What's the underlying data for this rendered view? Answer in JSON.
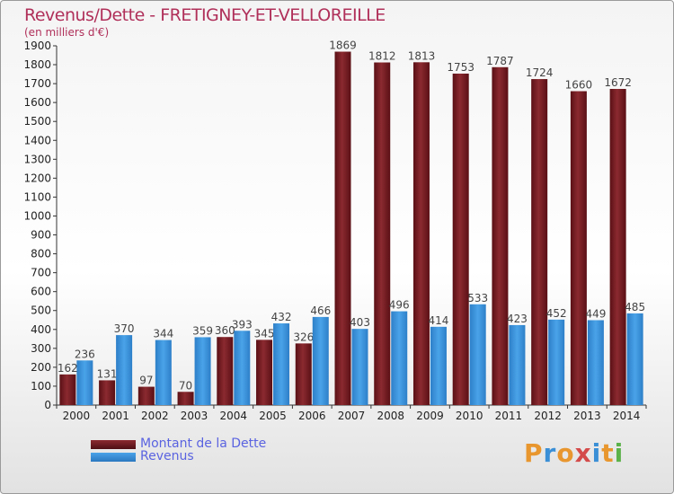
{
  "title": "Revenus/Dette - FRETIGNEY-ET-VELLOREILLE",
  "subtitle": "(en milliers d'€)",
  "logo": {
    "text": "Proxiti",
    "colors": [
      "#e8962e",
      "#3a8fd6",
      "#e8962e",
      "#d44a4a",
      "#3a8fd6",
      "#e8962e",
      "#5bb24a"
    ]
  },
  "legend": {
    "debt_label": "Montant de la Dette",
    "revenue_label": "Revenus"
  },
  "colors": {
    "debt": "#8b2a30",
    "revenue": "#4aa3e8"
  },
  "chart_data": {
    "type": "bar",
    "categories": [
      "2000",
      "2001",
      "2002",
      "2003",
      "2004",
      "2005",
      "2006",
      "2007",
      "2008",
      "2009",
      "2010",
      "2011",
      "2012",
      "2013",
      "2014"
    ],
    "series": [
      {
        "name": "Montant de la Dette",
        "values": [
          162,
          131,
          97,
          70,
          360,
          345,
          326,
          1869,
          1812,
          1813,
          1753,
          1787,
          1724,
          1660,
          1672
        ]
      },
      {
        "name": "Revenus",
        "values": [
          236,
          370,
          344,
          359,
          393,
          432,
          466,
          403,
          496,
          414,
          533,
          423,
          452,
          449,
          485
        ]
      }
    ],
    "yticks": [
      "0",
      "100",
      "200",
      "300",
      "400",
      "500",
      "600",
      "700",
      "800",
      "900",
      "1000",
      "1100",
      "1200",
      "1300",
      "1400",
      "1500",
      "1600",
      "1700",
      "1800",
      "1900"
    ],
    "ylim": [
      0,
      1900
    ],
    "grid": false,
    "legend_position": "bottom-left"
  }
}
